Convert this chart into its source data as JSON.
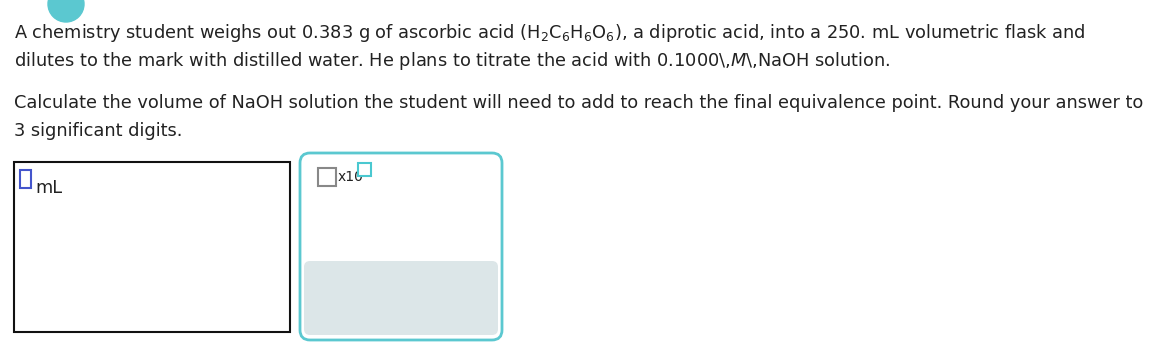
{
  "bg_color": "#ffffff",
  "text_color": "#222222",
  "icon_color": "#555555",
  "font_size_body": 12.8,
  "font_size_unit": 12.8,
  "font_size_icon": 15,
  "input_border_color": "#111111",
  "panel_border_color": "#5bc8d0",
  "panel_bg_color": "#ffffff",
  "toolbar_bg": "#dce6e8",
  "small_cursor_color_blue": "#4455cc",
  "small_cursor_color_teal": "#4ac8d0",
  "teal_circle_color": "#5bc8d0",
  "line1": "A chemistry student weighs out 0.383 g of ascorbic acid $\\left(\\mathrm{H_2C_6H_6O_6}\\right)$, a diprotic acid, into a 250. mL volumetric flask and",
  "line2": "dilutes to the mark with distilled water. He plans to titrate the acid with 0.1000\\,$M$\\,NaOH solution.",
  "line3": "Calculate the volume of NaOH solution the student will need to add to reach the final equivalence point. Round your answer to",
  "line4": "3 significant digits.",
  "unit_label": "mL",
  "icon_x": "×",
  "icon_undo": "↺",
  "icon_help": "?"
}
